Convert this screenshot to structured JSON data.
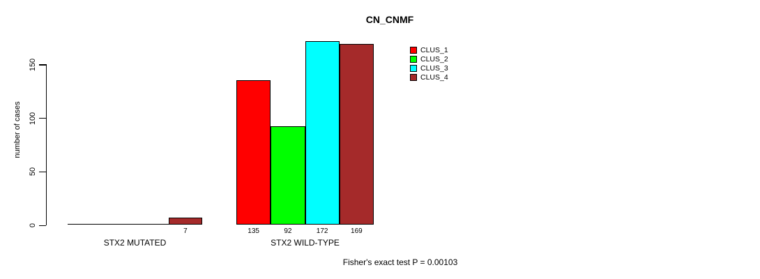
{
  "chart_data": {
    "type": "bar",
    "title": "CN_CNMF",
    "ylabel": "number of cases",
    "xlabel": "",
    "categories": [
      "STX2 MUTATED",
      "STX2 WILD-TYPE"
    ],
    "series": [
      {
        "name": "CLUS_1",
        "color": "#FF0000",
        "values": [
          0,
          135
        ]
      },
      {
        "name": "CLUS_2",
        "color": "#00FF00",
        "values": [
          0,
          92
        ]
      },
      {
        "name": "CLUS_3",
        "color": "#00FFFF",
        "values": [
          0,
          172
        ]
      },
      {
        "name": "CLUS_4",
        "color": "#A52A2A",
        "values": [
          7,
          169
        ]
      }
    ],
    "yticks": [
      0,
      50,
      100,
      150
    ],
    "ylim": [
      0,
      172
    ],
    "grid": false,
    "legend_position": "top-right",
    "bar_value_labels_shown": [
      [
        7
      ],
      [
        135,
        92,
        172,
        169
      ]
    ],
    "caption": "Fisher's exact test P = 0.00103"
  }
}
